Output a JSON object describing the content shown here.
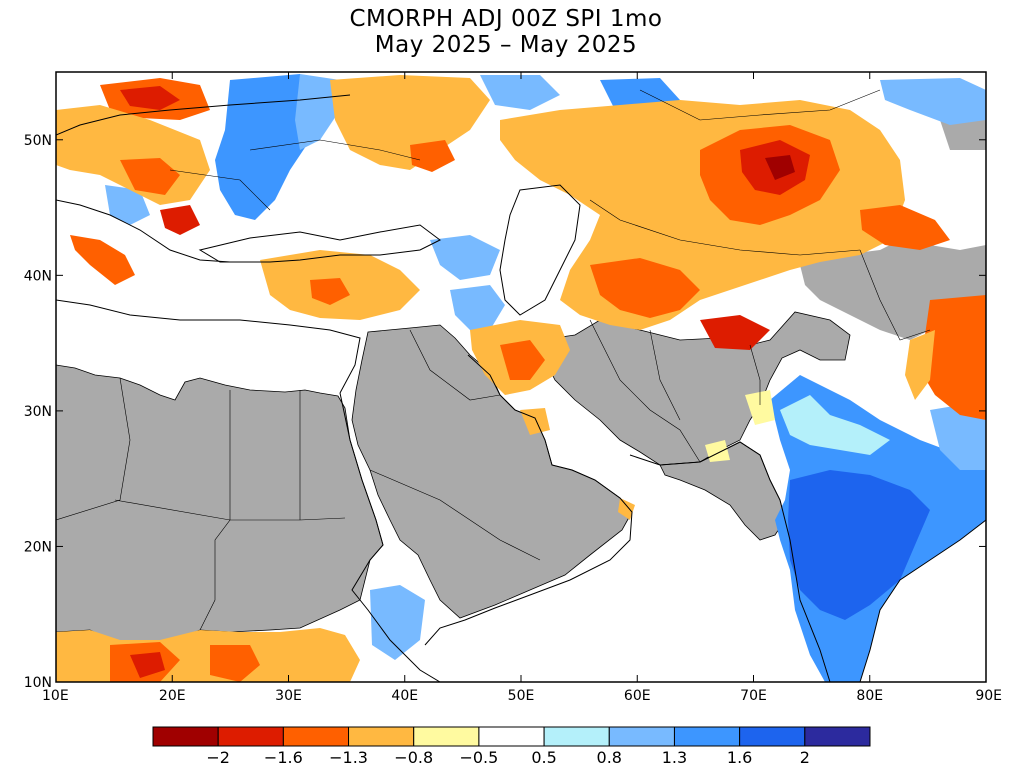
{
  "title": {
    "line1": "CMORPH ADJ 00Z SPI 1mo",
    "line2": "May 2025 – May 2025"
  },
  "map": {
    "lon_range": [
      10,
      90
    ],
    "lat_range": [
      10,
      55
    ],
    "x_ticks": [
      {
        "lon": 10,
        "label": "10E"
      },
      {
        "lon": 20,
        "label": "20E"
      },
      {
        "lon": 30,
        "label": "30E"
      },
      {
        "lon": 40,
        "label": "40E"
      },
      {
        "lon": 50,
        "label": "50E"
      },
      {
        "lon": 60,
        "label": "60E"
      },
      {
        "lon": 70,
        "label": "70E"
      },
      {
        "lon": 80,
        "label": "80E"
      },
      {
        "lon": 90,
        "label": "90E"
      }
    ],
    "y_ticks": [
      {
        "lat": 10,
        "label": "10N"
      },
      {
        "lat": 20,
        "label": "20N"
      },
      {
        "lat": 30,
        "label": "30N"
      },
      {
        "lat": 40,
        "label": "40N"
      },
      {
        "lat": 50,
        "label": "50N"
      }
    ],
    "no_data_color": "#aaaaaa",
    "ocean_color": "#ffffff"
  },
  "colorbar": {
    "colors": [
      "#a00000",
      "#dd1c00",
      "#ff6000",
      "#ffb841",
      "#fffaa0",
      "#ffffff",
      "#b4f0fa",
      "#78baff",
      "#3d96ff",
      "#1d64ee",
      "#2c2a9e"
    ],
    "labels": [
      "−2",
      "−1.6",
      "−1.3",
      "−0.8",
      "−0.5",
      "0.5",
      "0.8",
      "1.3",
      "1.6",
      "2"
    ]
  }
}
